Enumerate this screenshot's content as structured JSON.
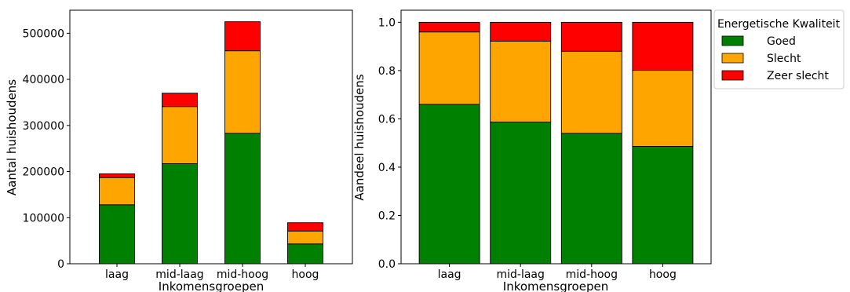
{
  "colors": {
    "goed": "#008000",
    "slecht": "#FFA500",
    "zeer_slecht": "#FF0000"
  },
  "legend": {
    "title": "Energetische Kwaliteit",
    "placement": "outside-top-right",
    "entries": [
      "Goed",
      "Slecht",
      "Zeer slecht"
    ]
  },
  "chart_data": [
    {
      "type": "bar",
      "stacked": true,
      "categories": [
        "laag",
        "mid-laag",
        "mid-hoog",
        "hoog"
      ],
      "series": [
        {
          "name": "Goed",
          "values": [
            128000,
            217000,
            283000,
            43000
          ]
        },
        {
          "name": "Slecht",
          "values": [
            59000,
            124000,
            179000,
            28000
          ]
        },
        {
          "name": "Zeer slecht",
          "values": [
            8000,
            29000,
            63000,
            18000
          ]
        }
      ],
      "xlabel": "Inkomensgroepen",
      "ylabel": "Aantal huishoudens",
      "ylim": [
        0,
        550000
      ],
      "yticks": [
        0,
        100000,
        200000,
        300000,
        400000,
        500000
      ],
      "ytick_labels": [
        "0",
        "100000",
        "200000",
        "300000",
        "400000",
        "500000"
      ],
      "grid": false
    },
    {
      "type": "bar",
      "stacked": true,
      "categories": [
        "laag",
        "mid-laag",
        "mid-hoog",
        "hoog"
      ],
      "series": [
        {
          "name": "Goed",
          "values": [
            0.66,
            0.587,
            0.54,
            0.486
          ]
        },
        {
          "name": "Slecht",
          "values": [
            0.3,
            0.335,
            0.34,
            0.315
          ]
        },
        {
          "name": "Zeer slecht",
          "values": [
            0.04,
            0.078,
            0.12,
            0.199
          ]
        }
      ],
      "xlabel": "Inkomensgroepen",
      "ylabel": "Aandeel huishoudens",
      "ylim": [
        0,
        1.05
      ],
      "yticks": [
        0,
        0.2,
        0.4,
        0.6,
        0.8,
        1.0
      ],
      "ytick_labels": [
        "0.0",
        "0.2",
        "0.4",
        "0.6",
        "0.8",
        "1.0"
      ],
      "grid": false
    }
  ]
}
